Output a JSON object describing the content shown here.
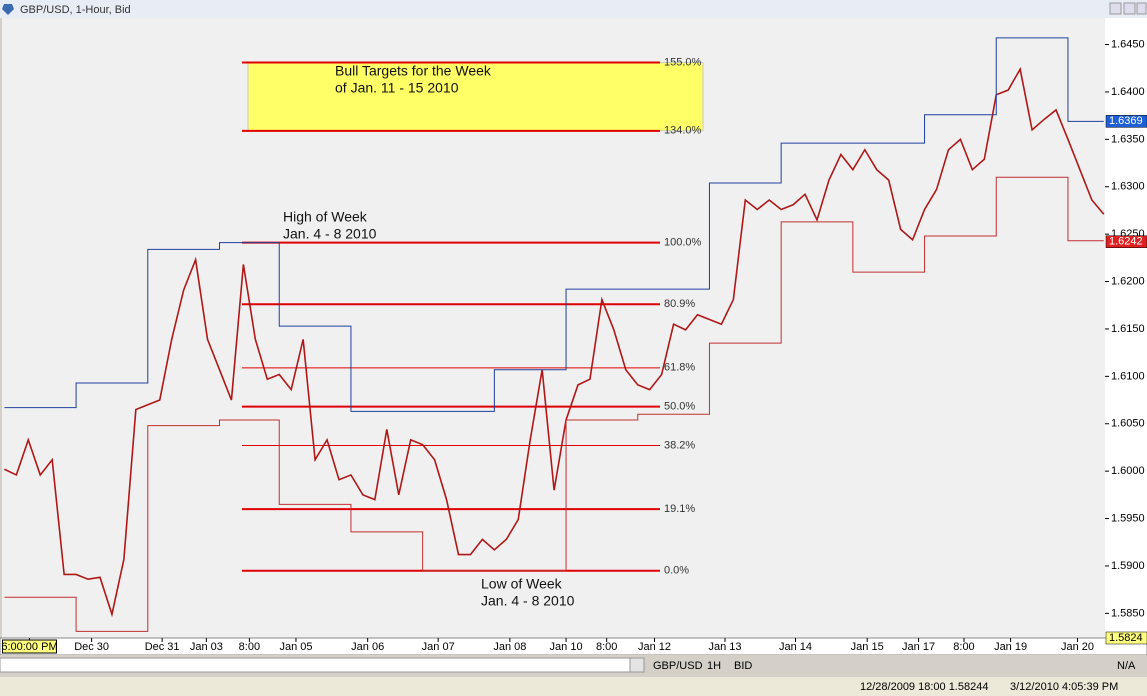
{
  "window": {
    "title": "GBP/USD, 1-Hour, Bid"
  },
  "chart_data": {
    "type": "line",
    "x": [
      0,
      1,
      2,
      3,
      4,
      5,
      6,
      7,
      8,
      9,
      10,
      11,
      12,
      13,
      14,
      15,
      16,
      17,
      18,
      19,
      20,
      21,
      22,
      23,
      24,
      25,
      26,
      27,
      28,
      29,
      30,
      31,
      32,
      33,
      34,
      35,
      36,
      37,
      38,
      39,
      40,
      41,
      42,
      43,
      44,
      45,
      46,
      47,
      48,
      49,
      50,
      51,
      52,
      53,
      54,
      55,
      56,
      57,
      58,
      59,
      60,
      61,
      62,
      63,
      64,
      65,
      66,
      67,
      68,
      69,
      70,
      71,
      72,
      73,
      74,
      75,
      76,
      77,
      78,
      79,
      80,
      81,
      82,
      83,
      84,
      85,
      86,
      87,
      88,
      89,
      90,
      91,
      92
    ],
    "series": [
      {
        "name": "GBP/USD",
        "color": "#b01818",
        "values": [
          1.6002,
          1.5996,
          1.6033,
          1.5996,
          1.6012,
          1.5891,
          1.5891,
          1.5886,
          1.5888,
          1.5849,
          1.5907,
          1.6065,
          1.607,
          1.6075,
          1.6139,
          1.6191,
          1.6223,
          1.6139,
          1.6107,
          1.6075,
          1.6218,
          1.6139,
          1.6097,
          1.6102,
          1.6086,
          1.6139,
          1.6012,
          1.6033,
          1.5991,
          1.5996,
          1.5975,
          1.597,
          1.6044,
          1.5975,
          1.6033,
          1.6028,
          1.6012,
          1.597,
          1.5912,
          1.5912,
          1.5928,
          1.5917,
          1.5928,
          1.5949,
          1.6033,
          1.6107,
          1.598,
          1.6054,
          1.6091,
          1.6097,
          1.6181,
          1.6149,
          1.6107,
          1.6091,
          1.6086,
          1.6102,
          1.6155,
          1.6149,
          1.6165,
          1.616,
          1.6155,
          1.6181,
          1.6286,
          1.6276,
          1.6286,
          1.6276,
          1.6281,
          1.6292,
          1.6265,
          1.6307,
          1.6334,
          1.6318,
          1.6339,
          1.6318,
          1.6307,
          1.6255,
          1.6244,
          1.6276,
          1.6297,
          1.6339,
          1.635,
          1.6318,
          1.6329,
          1.6397,
          1.6402,
          1.6424,
          1.636,
          1.6371,
          1.6381,
          1.635,
          1.6318,
          1.6286,
          1.6271
        ]
      },
      {
        "name": "Upper",
        "color": "#1f3f9f",
        "values": [
          1.6067,
          1.6067,
          1.6067,
          1.6067,
          1.6067,
          1.6067,
          1.6093,
          1.6093,
          1.6093,
          1.6093,
          1.6093,
          1.6093,
          1.6234,
          1.6234,
          1.6234,
          1.6234,
          1.6234,
          1.6234,
          1.6241,
          1.6241,
          1.6241,
          1.6241,
          1.6241,
          1.6153,
          1.6153,
          1.6153,
          1.6153,
          1.6153,
          1.6153,
          1.6063,
          1.6063,
          1.6063,
          1.6063,
          1.6063,
          1.6063,
          1.6063,
          1.6063,
          1.6063,
          1.6063,
          1.6063,
          1.6063,
          1.6107,
          1.6107,
          1.6107,
          1.6107,
          1.6107,
          1.6107,
          1.6192,
          1.6192,
          1.6192,
          1.6192,
          1.6192,
          1.6192,
          1.6192,
          1.6192,
          1.6192,
          1.6192,
          1.6192,
          1.6192,
          1.6304,
          1.6304,
          1.6304,
          1.6304,
          1.6304,
          1.6304,
          1.6346,
          1.6346,
          1.6346,
          1.6346,
          1.6346,
          1.6346,
          1.6346,
          1.6346,
          1.6346,
          1.6346,
          1.6346,
          1.6346,
          1.6376,
          1.6376,
          1.6376,
          1.6376,
          1.6376,
          1.6376,
          1.6457,
          1.6457,
          1.6457,
          1.6457,
          1.6457,
          1.6457,
          1.6369,
          1.6369,
          1.6369,
          1.6369
        ]
      },
      {
        "name": "Lower",
        "color": "#c03030",
        "values": [
          1.5867,
          1.5867,
          1.5867,
          1.5867,
          1.5867,
          1.5867,
          1.5831,
          1.5831,
          1.5831,
          1.5831,
          1.5831,
          1.5831,
          1.6048,
          1.6048,
          1.6048,
          1.6048,
          1.6048,
          1.6048,
          1.6054,
          1.6054,
          1.6054,
          1.6054,
          1.6054,
          1.5965,
          1.5965,
          1.5965,
          1.5965,
          1.5965,
          1.5965,
          1.5936,
          1.5936,
          1.5936,
          1.5936,
          1.5936,
          1.5936,
          1.5895,
          1.5895,
          1.5895,
          1.5895,
          1.5895,
          1.5895,
          1.5895,
          1.5895,
          1.5895,
          1.5895,
          1.5895,
          1.5895,
          1.6054,
          1.6054,
          1.6054,
          1.6054,
          1.6054,
          1.6054,
          1.606,
          1.606,
          1.606,
          1.606,
          1.606,
          1.606,
          1.6135,
          1.6135,
          1.6135,
          1.6135,
          1.6135,
          1.6135,
          1.6263,
          1.6263,
          1.6263,
          1.6263,
          1.6263,
          1.6263,
          1.621,
          1.621,
          1.621,
          1.621,
          1.621,
          1.621,
          1.6248,
          1.6248,
          1.6248,
          1.6248,
          1.6248,
          1.6248,
          1.631,
          1.631,
          1.631,
          1.631,
          1.631,
          1.631,
          1.6243,
          1.6243,
          1.6243,
          1.6243
        ]
      }
    ],
    "xlim": [
      -0.2,
      92.1
    ],
    "xticks": [
      {
        "value": 2.1,
        "label": "6:00:00 PM"
      },
      {
        "value": 7.3,
        "label": "Dec 30"
      },
      {
        "value": 13.2,
        "label": "Dec 31"
      },
      {
        "value": 16.9,
        "label": "Jan 03"
      },
      {
        "value": 20.5,
        "label": "8:00"
      },
      {
        "value": 24.4,
        "label": "Jan 05"
      },
      {
        "value": 30.4,
        "label": "Jan 06"
      },
      {
        "value": 36.3,
        "label": "Jan 07"
      },
      {
        "value": 42.3,
        "label": "Jan 08"
      },
      {
        "value": 47,
        "label": "Jan 10"
      },
      {
        "value": 50.4,
        "label": "8:00"
      },
      {
        "value": 54.4,
        "label": "Jan 12"
      },
      {
        "value": 60.3,
        "label": "Jan 13"
      },
      {
        "value": 66.2,
        "label": "Jan 14"
      },
      {
        "value": 72.2,
        "label": "Jan 15"
      },
      {
        "value": 76.5,
        "label": "Jan 17"
      },
      {
        "value": 80.3,
        "label": "8:00"
      },
      {
        "value": 84.2,
        "label": "Jan 19"
      },
      {
        "value": 89.8,
        "label": "Jan 20"
      }
    ],
    "ylim": [
      1.5824,
      1.6478
    ],
    "yticks": [
      {
        "value": 1.585,
        "label": "1.5850"
      },
      {
        "value": 1.59,
        "label": "1.5900"
      },
      {
        "value": 1.595,
        "label": "1.5950"
      },
      {
        "value": 1.6,
        "label": "1.6000"
      },
      {
        "value": 1.605,
        "label": "1.6050"
      },
      {
        "value": 1.61,
        "label": "1.6100"
      },
      {
        "value": 1.615,
        "label": "1.6150"
      },
      {
        "value": 1.62,
        "label": "1.6200"
      },
      {
        "value": 1.625,
        "label": "1.6250"
      },
      {
        "value": 1.63,
        "label": "1.6300"
      },
      {
        "value": 1.635,
        "label": "1.6350"
      },
      {
        "value": 1.64,
        "label": "1.6400"
      },
      {
        "value": 1.645,
        "label": "1.6450"
      }
    ],
    "price_labels": [
      {
        "value": 1.6369,
        "label": "1.6369",
        "color": "#1c5fd6"
      },
      {
        "value": 1.6242,
        "label": "1.6242",
        "color": "#e02020"
      },
      {
        "value": 1.5824,
        "label": "1.5824",
        "color": "#ffff80"
      }
    ],
    "fib_levels": [
      {
        "label": "155.0%",
        "price": 1.6431
      },
      {
        "label": "134.0%",
        "price": 1.6359
      },
      {
        "label": "100.0%",
        "price": 1.6241
      },
      {
        "label": "80.9%",
        "price": 1.6176
      },
      {
        "label": "61.8%",
        "price": 1.6109
      },
      {
        "label": "50.0%",
        "price": 1.6068
      },
      {
        "label": "38.2%",
        "price": 1.6027
      },
      {
        "label": "19.1%",
        "price": 1.596
      },
      {
        "label": "0.0%",
        "price": 1.5895
      }
    ],
    "annotations": {
      "bull": [
        "Bull Targets for the Week",
        "of Jan. 11 - 15 2010"
      ],
      "high": [
        "High of Week",
        "Jan. 4 - 8 2010"
      ],
      "low": [
        "Low of Week",
        "Jan. 4 - 8 2010"
      ]
    }
  },
  "toolbar": {
    "symbol": "GBP/USD",
    "period": "1H",
    "side": "BID",
    "status": "N/A"
  },
  "status_bar": {
    "left": "12/28/2009 18:00 1.58244",
    "right": "3/12/2010 4:05:39 PM"
  }
}
